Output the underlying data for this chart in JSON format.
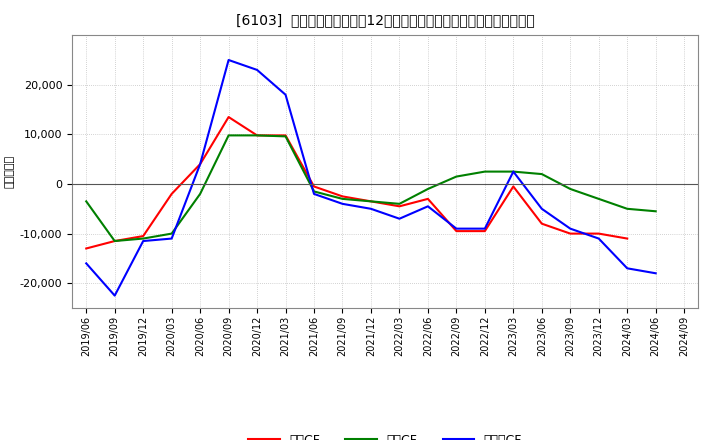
{
  "title": "[6103]  キャッシュフローの12か月移動合計の対前年同期増減額の推移",
  "ylabel": "（百万円）",
  "background_color": "#ffffff",
  "plot_bg_color": "#ffffff",
  "grid_color": "#aaaaaa",
  "ylim": [
    -25000,
    30000
  ],
  "yticks": [
    -20000,
    -10000,
    0,
    10000,
    20000
  ],
  "dates": [
    "2019/06",
    "2019/09",
    "2019/12",
    "2020/03",
    "2020/06",
    "2020/09",
    "2020/12",
    "2021/03",
    "2021/06",
    "2021/09",
    "2021/12",
    "2022/03",
    "2022/06",
    "2022/09",
    "2022/12",
    "2023/03",
    "2023/06",
    "2023/09",
    "2023/12",
    "2024/03",
    "2024/06",
    "2024/09"
  ],
  "operating_cf": [
    -13000,
    -11500,
    -10500,
    -2000,
    4000,
    13500,
    9800,
    9800,
    -500,
    -2500,
    -3500,
    -4500,
    -3000,
    -9500,
    -9500,
    -500,
    -8000,
    -10000,
    -10000,
    -11000,
    null,
    null
  ],
  "investing_cf": [
    -3500,
    -11500,
    -11000,
    -10000,
    -2000,
    9800,
    9800,
    9600,
    -1500,
    -3000,
    -3500,
    -4000,
    -1000,
    1500,
    2500,
    2500,
    2000,
    -1000,
    -3000,
    -5000,
    -5500,
    null
  ],
  "free_cf": [
    -16000,
    -22500,
    -11500,
    -11000,
    4000,
    25000,
    23000,
    18000,
    -2000,
    -4000,
    -5000,
    -7000,
    -4500,
    -9000,
    -9000,
    2500,
    -5000,
    -9000,
    -11000,
    -17000,
    -18000,
    null
  ],
  "operating_color": "#ff0000",
  "investing_color": "#008000",
  "free_color": "#0000ff",
  "line_width": 1.5,
  "legend_labels": [
    "営業CF",
    "投資CF",
    "フリーCF"
  ]
}
